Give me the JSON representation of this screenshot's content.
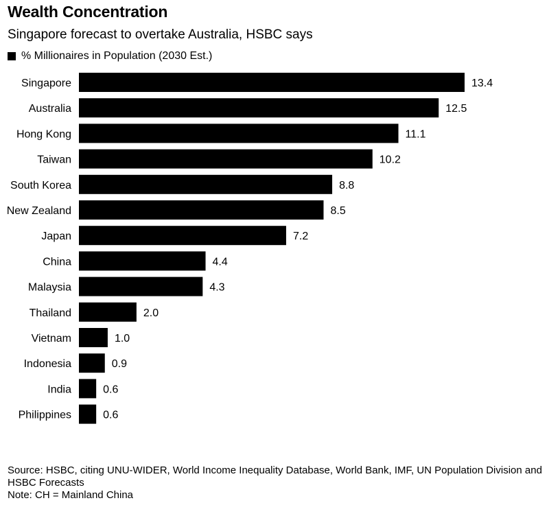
{
  "chart_data": {
    "type": "bar",
    "orientation": "horizontal",
    "title": "Wealth Concentration",
    "subtitle": "Singapore forecast to overtake Australia, HSBC says",
    "categories": [
      "Singapore",
      "Australia",
      "Hong Kong",
      "Taiwan",
      "South Korea",
      "New Zealand",
      "Japan",
      "China",
      "Malaysia",
      "Thailand",
      "Vietnam",
      "Indonesia",
      "India",
      "Philippines"
    ],
    "series": [
      {
        "name": "% Millionaires in Population (2030 Est.)",
        "values": [
          13.4,
          12.5,
          11.1,
          10.2,
          8.8,
          8.5,
          7.2,
          4.4,
          4.3,
          2.0,
          1.0,
          0.9,
          0.6,
          0.6
        ],
        "labels": [
          "13.4",
          "12.5",
          "11.1",
          "10.2",
          "8.8",
          "8.5",
          "7.2",
          "4.4",
          "4.3",
          "2.0",
          "1.0",
          "0.9",
          "0.6",
          "0.6"
        ],
        "color": "#000000"
      }
    ],
    "xlim": [
      0,
      13.4
    ],
    "grid": false,
    "legend": "top-left",
    "source": "Source: HSBC, citing UNU-WIDER, World Income Inequality Database, World Bank, IMF, UN Population Division and HSBC Forecasts",
    "note": "Note: CH = Mainland China"
  }
}
